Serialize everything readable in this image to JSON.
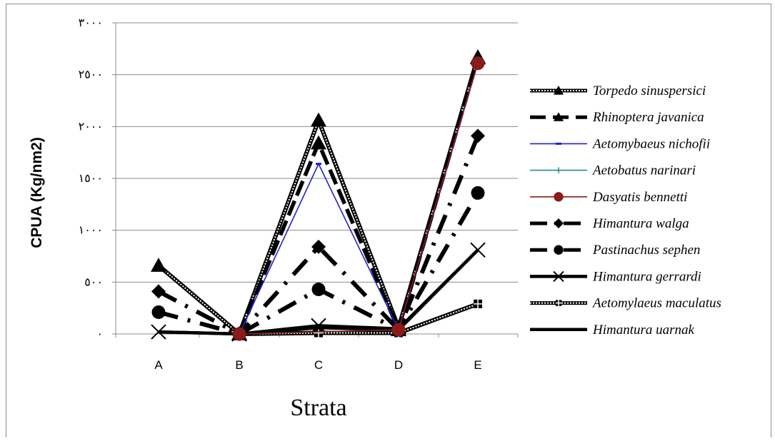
{
  "chart_data": {
    "type": "line",
    "title": "",
    "xlabel": "Strata",
    "ylabel": "CPUA (Kg/nm2)",
    "categories": [
      "A",
      "B",
      "C",
      "D",
      "E"
    ],
    "ylim": [
      0,
      3000
    ],
    "yticks": [
      0,
      500,
      1000,
      1500,
      2000,
      2500,
      3000
    ],
    "ytick_labels": [
      "٠",
      "٥٠٠",
      "١٠٠٠",
      "١٥٠٠",
      "٢٠٠٠",
      "٢٥٠٠",
      "٣٠٠٠"
    ],
    "grid": true,
    "legend_position": "right",
    "series": [
      {
        "name": "Torpedo sinuspersici",
        "values": [
          660,
          0,
          2060,
          60,
          2670
        ],
        "color": "#000000",
        "style": "dotted-double",
        "marker": "triangle"
      },
      {
        "name": "Rhinoptera javanica",
        "values": [
          null,
          0,
          1840,
          40,
          2660
        ],
        "color": "#000000",
        "style": "long-dash",
        "marker": "triangle"
      },
      {
        "name": "Aetomybaeus nichofii",
        "values": [
          null,
          0,
          1640,
          40,
          2620
        ],
        "color": "#1f1fd0",
        "style": "solid-thin",
        "marker": "small-dash"
      },
      {
        "name": "Aetobatus narinari",
        "values": [
          null,
          0,
          null,
          40,
          null
        ],
        "color": "#2a8a8a",
        "style": "solid-thin",
        "marker": "plus"
      },
      {
        "name": "Dasyatis bennetti",
        "values": [
          null,
          0,
          null,
          40,
          2610
        ],
        "color": "#8b1a1a",
        "style": "solid-thin",
        "marker": "circle"
      },
      {
        "name": "Himantura walga",
        "values": [
          410,
          0,
          840,
          40,
          1910
        ],
        "color": "#000000",
        "style": "dash-dot",
        "marker": "diamond"
      },
      {
        "name": "Pastinachus sephen",
        "values": [
          210,
          0,
          430,
          40,
          1360
        ],
        "color": "#000000",
        "style": "dash-dot",
        "marker": "circle"
      },
      {
        "name": "Himantura gerrardi",
        "values": [
          20,
          0,
          80,
          50,
          810
        ],
        "color": "#000000",
        "style": "solid-thick",
        "marker": "x"
      },
      {
        "name": "Aetomylaeus maculatus",
        "values": [
          null,
          0,
          10,
          10,
          290
        ],
        "color": "#000000",
        "style": "dotted-double",
        "marker": "square-cross"
      },
      {
        "name": "Himantura uarnak",
        "values": [
          20,
          0,
          60,
          40,
          810
        ],
        "color": "#000000",
        "style": "solid-thick",
        "marker": "none"
      }
    ]
  }
}
